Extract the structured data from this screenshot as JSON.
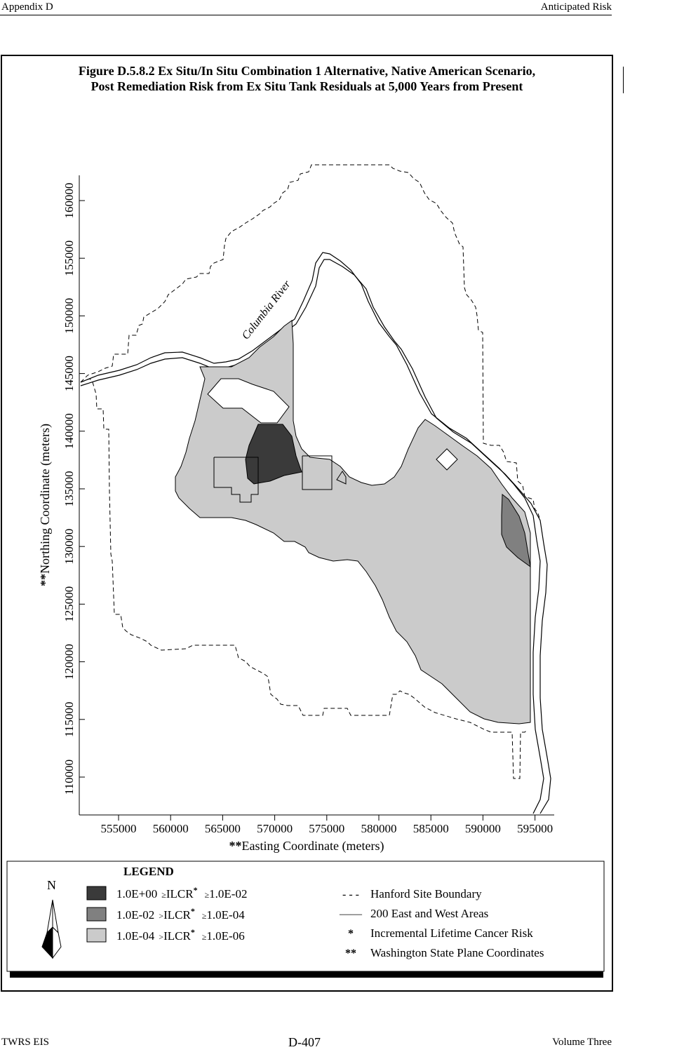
{
  "header": {
    "left": "Appendix D",
    "right": "Anticipated Risk"
  },
  "figure": {
    "title_line1": "Figure D.5.8.2  Ex Situ/In Situ Combination 1 Alternative, Native American Scenario,",
    "title_line2": "Post Remediation Risk from Ex Situ Tank Residuals at 5,000 Years from Present"
  },
  "map": {
    "river_label": "Columbia River",
    "y_axis_label_prefix": "**",
    "y_axis_label": "Northing Coordinate (meters)",
    "x_axis_label_prefix": "**",
    "x_axis_label": "Easting Coordinate (meters)",
    "x_ticks": [
      "555000",
      "560000",
      "565000",
      "570000",
      "575000",
      "580000",
      "585000",
      "590000",
      "595000"
    ],
    "y_ticks": [
      "110000",
      "115000",
      "120000",
      "125000",
      "130000",
      "135000",
      "140000",
      "145000",
      "150000",
      "155000",
      "160000"
    ],
    "colors": {
      "high": "#3a3a3a",
      "medium": "#808080",
      "low": "#cbcbcb"
    }
  },
  "legend": {
    "title": "LEGEND",
    "north_symbol": "N",
    "risk_items": [
      {
        "upper": "1.0E+00",
        "op1": "≥",
        "metric": "ILCR",
        "star": "*",
        "op2": "≥",
        "lower": "1.0E-02",
        "level": "high"
      },
      {
        "upper": "1.0E-02",
        "op1": ">",
        "metric": "ILCR",
        "star": "*",
        "op2": "≥",
        "lower": "1.0E-04",
        "level": "medium"
      },
      {
        "upper": "1.0E-04",
        "op1": ">",
        "metric": "ILCR",
        "star": "*",
        "op2": "≥",
        "lower": "1.0E-06",
        "level": "low"
      }
    ],
    "key_items": [
      {
        "symbol": "- - -",
        "label": "Hanford Site Boundary"
      },
      {
        "symbol": "——",
        "label": "200 East and West Areas"
      },
      {
        "symbol": "*",
        "label": "Incremental Lifetime Cancer Risk"
      },
      {
        "symbol": "**",
        "label": "Washington State Plane Coordinates"
      }
    ]
  },
  "footer": {
    "left": "TWRS EIS",
    "center": "D-407",
    "right": "Volume Three"
  }
}
